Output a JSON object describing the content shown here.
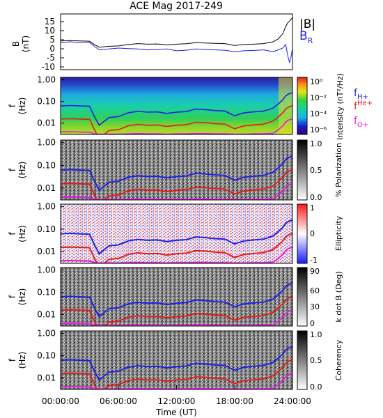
{
  "title": "ACE Mag 2017-249",
  "colors": {
    "h_plus": "#1f1fe6",
    "he_plus": "#e61919",
    "o_plus": "#e619e6",
    "b_total": "#000000",
    "b_radial": "#1f1fe6"
  },
  "x_axis": {
    "label": "Time (UT)",
    "ticks": [
      "00:00:00",
      "06:00:00",
      "12:00:00",
      "18:00:00",
      "24:00:00"
    ]
  },
  "chart_data": [
    {
      "type": "line",
      "panel": "magnetic-field",
      "ylabel": "B (nT)",
      "ylabel_lines": [
        "B",
        "(nT)"
      ],
      "y_ticks": [
        "15",
        "10",
        "5",
        "0",
        "-5",
        "-10"
      ],
      "ylim": [
        -12,
        19
      ],
      "x": [
        0,
        1,
        2,
        3,
        3.5,
        4,
        5,
        6,
        7,
        8,
        9,
        10,
        11,
        12,
        13,
        14,
        15,
        16,
        17,
        18,
        19,
        20,
        21,
        21.5,
        22,
        22.5,
        23,
        23.3,
        23.5,
        23.7,
        23.85,
        24
      ],
      "series": [
        {
          "name": "|B|",
          "label": "|B|",
          "values": [
            4,
            4.2,
            4,
            3.8,
            2,
            0.5,
            1,
            1.2,
            2,
            2.5,
            2.2,
            2.3,
            1.8,
            2.2,
            2.4,
            3,
            2.8,
            2.6,
            2.5,
            1.5,
            2,
            2.2,
            2.5,
            3,
            3.5,
            5,
            8,
            12,
            14,
            15,
            16,
            17
          ]
        },
        {
          "name": "B_R",
          "label": "B",
          "label_sub": "R",
          "values": [
            3,
            3.5,
            3,
            3.2,
            1,
            -1,
            -0.5,
            0,
            -0.3,
            -0.5,
            -1,
            -0.8,
            -0.5,
            -1.5,
            -1.2,
            -0.5,
            -0.8,
            -1,
            -1.2,
            -2,
            -1.5,
            -1.3,
            -1,
            -1.5,
            -2,
            -1,
            0,
            2,
            -4,
            -8,
            -5,
            0
          ]
        }
      ]
    },
    {
      "type": "heatmap",
      "panel": "intensity",
      "ylabel": "f (Hz)",
      "colorbar_label": "Intensity (nT²/Hz)",
      "colorbar_ticks": [
        "10⁰",
        "10⁻²",
        "10⁻⁴",
        "10⁻⁶"
      ],
      "legend": [
        {
          "name": "H+",
          "label": "f",
          "sub": "H+"
        },
        {
          "name": "He+",
          "label": "f",
          "sub": "He+"
        },
        {
          "name": "O+",
          "label": "f",
          "sub": "O+"
        }
      ]
    },
    {
      "type": "heatmap",
      "panel": "polarization",
      "ylabel": "f (Hz)",
      "colorbar_label": "% Polarization",
      "colorbar_ticks": [
        "1.0",
        "0.5",
        "0.0"
      ]
    },
    {
      "type": "heatmap",
      "panel": "ellipticity",
      "ylabel": "f (Hz)",
      "colorbar_label": "Ellipticity",
      "colorbar_ticks": [
        "1",
        "0",
        "-1"
      ]
    },
    {
      "type": "heatmap",
      "panel": "k-dot-b",
      "ylabel": "f (Hz)",
      "colorbar_label": "k dot B (Deg)",
      "colorbar_ticks": [
        "90",
        "60",
        "30",
        "0"
      ]
    },
    {
      "type": "heatmap",
      "panel": "coherency",
      "ylabel": "f (Hz)",
      "colorbar_label": "Coherency",
      "colorbar_ticks": [
        "1.0",
        "0.5",
        "0.0"
      ]
    }
  ],
  "freq_axis": {
    "ticks": [
      "1.00",
      "0.10",
      "0.01"
    ],
    "ylim": [
      0.003,
      1.3
    ]
  },
  "gyrofrequency_lines": {
    "x": [
      0,
      1,
      2,
      3,
      3.5,
      4,
      5,
      6,
      7,
      8,
      9,
      10,
      11,
      12,
      13,
      14,
      15,
      16,
      17,
      18,
      19,
      20,
      21,
      21.5,
      22,
      22.5,
      23,
      23.3,
      23.5,
      23.7,
      23.85,
      24
    ],
    "H+": [
      0.062,
      0.065,
      0.062,
      0.06,
      0.02,
      0.008,
      0.018,
      0.02,
      0.03,
      0.035,
      0.032,
      0.033,
      0.028,
      0.032,
      0.034,
      0.045,
      0.042,
      0.038,
      0.036,
      0.022,
      0.03,
      0.033,
      0.036,
      0.042,
      0.05,
      0.075,
      0.12,
      0.18,
      0.21,
      0.23,
      0.24,
      0.26
    ],
    "He+": [
      0.0155,
      0.016,
      0.0155,
      0.015,
      0.005,
      0.002,
      0.0045,
      0.005,
      0.0075,
      0.0088,
      0.008,
      0.0082,
      0.007,
      0.008,
      0.0085,
      0.011,
      0.0105,
      0.0095,
      0.009,
      0.0055,
      0.0075,
      0.0082,
      0.009,
      0.0105,
      0.0125,
      0.019,
      0.03,
      0.045,
      0.052,
      0.058,
      0.06,
      0.065
    ],
    "O+": [
      0.0039,
      0.004,
      0.0039,
      0.0038,
      0.0032,
      0.0031,
      0.0031,
      0.0031,
      0.0032,
      0.0033,
      0.0032,
      0.0032,
      0.0031,
      0.0032,
      0.0032,
      0.0033,
      0.0033,
      0.0032,
      0.0032,
      0.0031,
      0.0031,
      0.0032,
      0.0032,
      0.0033,
      0.0034,
      0.0048,
      0.0075,
      0.011,
      0.013,
      0.0145,
      0.015,
      0.016
    ]
  }
}
